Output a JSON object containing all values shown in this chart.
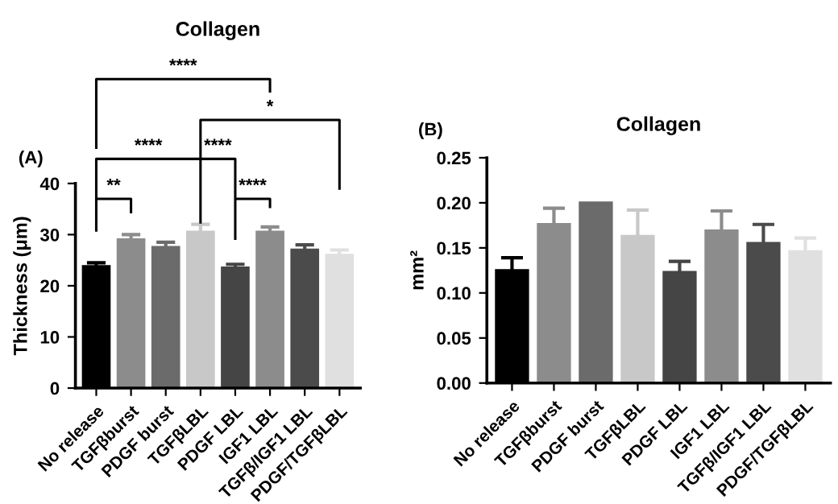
{
  "chart_data": [
    {
      "type": "bar",
      "title": "Collagen",
      "ylabel": "Thickness (μm)",
      "categories": [
        "No release",
        "TGFβburst",
        "PDGF burst",
        "TGFβLBL",
        "PDGF LBL",
        "IGF1 LBL",
        "TGFβ/IGF1 LBL",
        "PDGF/TGFβLBL"
      ],
      "values": [
        23.8,
        29.0,
        27.5,
        30.5,
        23.5,
        30.5,
        27.0,
        26.0
      ],
      "errors": [
        [
          23.8,
          24.5
        ],
        [
          29.0,
          30.0
        ],
        [
          27.5,
          28.5
        ],
        [
          30.5,
          32.0
        ],
        [
          23.5,
          24.2
        ],
        [
          30.5,
          31.5
        ],
        [
          27.0,
          28.0
        ],
        [
          26.0,
          27.0
        ]
      ],
      "colors": [
        "#000000",
        "#8c8c8c",
        "#6b6b6b",
        "#c8c8c8",
        "#454545",
        "#8c8c8c",
        "#4b4b4b",
        "#e0e0e0"
      ],
      "ylim": [
        0,
        40
      ],
      "yticks": [
        0,
        10,
        20,
        30,
        40
      ],
      "grid": false,
      "annotations": [
        "(A)",
        "**",
        "****",
        "****",
        "****",
        "*",
        "****"
      ]
    },
    {
      "type": "bar",
      "title": "Collagen",
      "ylabel": "mm²",
      "categories": [
        "No release",
        "TGFβburst",
        "PDGF burst",
        "TGFβLBL",
        "PDGF LBL",
        "IGF1 LBL",
        "TGFβ/IGF1 LBL",
        "PDGF/TGFβLBL"
      ],
      "values": [
        0.125,
        0.176,
        0.2,
        0.163,
        0.123,
        0.169,
        0.155,
        0.146
      ],
      "errors": [
        [
          0.125,
          0.139
        ],
        [
          0.176,
          0.194
        ],
        null,
        [
          0.163,
          0.192
        ],
        [
          0.123,
          0.135
        ],
        [
          0.169,
          0.191
        ],
        [
          0.155,
          0.176
        ],
        [
          0.146,
          0.161
        ]
      ],
      "colors": [
        "#000000",
        "#8c8c8c",
        "#6b6b6b",
        "#c8c8c8",
        "#454545",
        "#8c8c8c",
        "#4b4b4b",
        "#e0e0e0"
      ],
      "ylim": [
        0,
        0.25
      ],
      "yticks": [
        {
          "value": 0,
          "label": "0.00"
        },
        {
          "value": 0.05,
          "label": "0.05"
        },
        {
          "value": 0.1,
          "label": "0.10"
        },
        {
          "value": 0.15,
          "label": "0.15"
        },
        {
          "value": 0.2,
          "label": "0.20"
        },
        {
          "value": 0.25,
          "label": "0.25"
        }
      ],
      "grid": false,
      "annotations": [
        "(B)"
      ]
    }
  ]
}
